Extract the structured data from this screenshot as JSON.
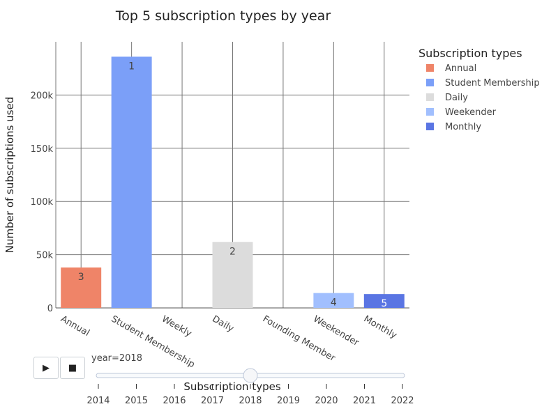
{
  "chart_data": {
    "type": "bar",
    "title": "Top 5 subscription types by year",
    "xlabel": "Subscription types",
    "ylabel": "Number of subscriptions used",
    "ylim": [
      0,
      250000
    ],
    "yticks": [
      0,
      50000,
      100000,
      150000,
      200000
    ],
    "ytick_labels": [
      "0",
      "50k",
      "100k",
      "150k",
      "200k"
    ],
    "grid": true,
    "categories": [
      "Annual",
      "Student Membership",
      "Weekly",
      "Daily",
      "Founding Member",
      "Weekender",
      "Monthly"
    ],
    "bars": [
      {
        "category": "Annual",
        "value": 38000,
        "rank": "3",
        "series": "Annual"
      },
      {
        "category": "Student Membership",
        "value": 236000,
        "rank": "1",
        "series": "Student Membership"
      },
      {
        "category": "Daily",
        "value": 62000,
        "rank": "2",
        "series": "Daily"
      },
      {
        "category": "Weekender",
        "value": 14000,
        "rank": "4",
        "series": "Weekender"
      },
      {
        "category": "Monthly",
        "value": 13000,
        "rank": "5",
        "series": "Monthly"
      }
    ],
    "legend": {
      "title": "Subscription types",
      "placement": "top-right",
      "items": [
        {
          "name": "Annual",
          "color": "#ef8468"
        },
        {
          "name": "Student Membership",
          "color": "#7b9ff8"
        },
        {
          "name": "Daily",
          "color": "#dcdcdc"
        },
        {
          "name": "Weekender",
          "color": "#a1bffe"
        },
        {
          "name": "Monthly",
          "color": "#5a75e3"
        }
      ]
    },
    "label_colors": {
      "Annual": "#444444",
      "Student Membership": "#444444",
      "Daily": "#444444",
      "Weekender": "#444444",
      "Monthly": "#ffffff"
    }
  },
  "controls": {
    "play_label": "▶",
    "stop_label": "■",
    "slider_caption": "year=2018",
    "selected_year": "2018",
    "years": [
      "2014",
      "2015",
      "2016",
      "2017",
      "2018",
      "2019",
      "2020",
      "2021",
      "2022"
    ]
  }
}
